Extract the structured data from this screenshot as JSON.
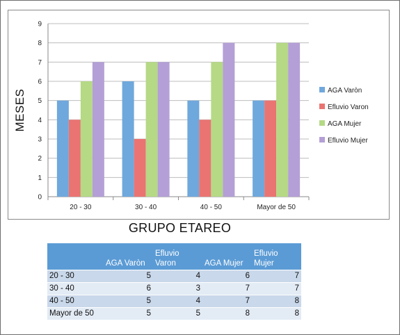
{
  "chart_data": {
    "type": "bar",
    "title": "",
    "xlabel": "GRUPO ETAREO",
    "ylabel": "MESES",
    "categories": [
      "20 - 30",
      "30 - 40",
      "40 - 50",
      "Mayor de 50"
    ],
    "series": [
      {
        "name": "AGA Varòn",
        "values": [
          5,
          6,
          5,
          5
        ],
        "color": "#6fa8dc"
      },
      {
        "name": "Efluvio Varon",
        "values": [
          4,
          3,
          4,
          5
        ],
        "color": "#ea7472"
      },
      {
        "name": "AGA Mujer",
        "values": [
          6,
          7,
          7,
          8
        ],
        "color": "#b5d985"
      },
      {
        "name": "Efluvio Mujer",
        "values": [
          7,
          7,
          8,
          8
        ],
        "color": "#b49fd6"
      }
    ],
    "ylim": [
      0,
      9
    ],
    "yticks": [
      "0",
      "1",
      "2",
      "3",
      "4",
      "5",
      "6",
      "7",
      "8",
      "9"
    ],
    "grid": true,
    "legend_position": "right"
  },
  "table": {
    "headers": [
      "",
      "AGA Varòn",
      "Efluvio Varon",
      "AGA Mujer",
      "Efluvio Mujer"
    ],
    "rows": [
      [
        "20 - 30",
        "5",
        "4",
        "6",
        "7"
      ],
      [
        "30 - 40",
        "6",
        "3",
        "7",
        "7"
      ],
      [
        "40 - 50",
        "5",
        "4",
        "7",
        "8"
      ],
      [
        "Mayor de 50",
        "5",
        "5",
        "8",
        "8"
      ]
    ]
  }
}
